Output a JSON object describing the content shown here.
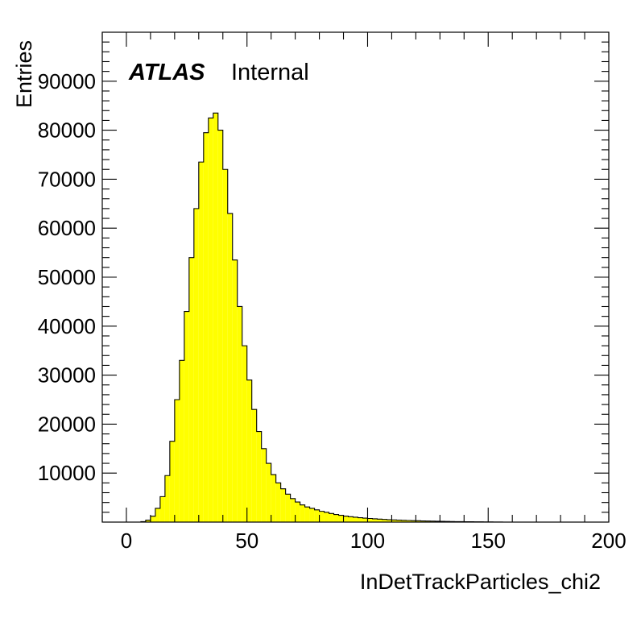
{
  "chart_data": {
    "type": "bar",
    "style": "histogram",
    "xlabel": "InDetTrackParticles_chi2",
    "ylabel": "Entries",
    "label_main": "ATLAS",
    "label_sub": "Internal",
    "xlim": [
      -10,
      200
    ],
    "ylim": [
      0,
      100000
    ],
    "x_ticks": [
      0,
      50,
      100,
      150,
      200
    ],
    "y_ticks": [
      10000,
      20000,
      30000,
      40000,
      50000,
      60000,
      70000,
      80000,
      90000
    ],
    "grid": false,
    "legend": "none",
    "fill_color": "#ffff00",
    "line_color": "#000000",
    "bin_width": 2,
    "bins_start": 0,
    "values": [
      0,
      0,
      0,
      100,
      400,
      1200,
      2800,
      5200,
      9500,
      16500,
      25000,
      33000,
      43000,
      54000,
      64000,
      73500,
      79500,
      82500,
      83500,
      80000,
      72000,
      63000,
      53500,
      44000,
      36000,
      29000,
      23000,
      18500,
      15000,
      12000,
      9700,
      8000,
      6800,
      5700,
      4800,
      4100,
      3500,
      3100,
      2800,
      2500,
      2200,
      2000,
      1750,
      1550,
      1380,
      1230,
      1100,
      1000,
      900,
      820,
      740,
      670,
      600,
      540,
      490,
      440,
      400,
      360,
      330,
      300,
      270,
      240,
      220,
      200,
      180,
      160,
      140,
      120,
      100,
      90,
      80,
      70,
      60,
      50,
      40,
      30,
      20,
      10,
      0,
      0,
      0,
      0,
      0,
      0,
      0,
      0,
      0,
      0,
      0,
      0,
      0,
      0,
      0,
      0,
      0,
      0,
      0,
      0,
      0,
      0
    ]
  }
}
